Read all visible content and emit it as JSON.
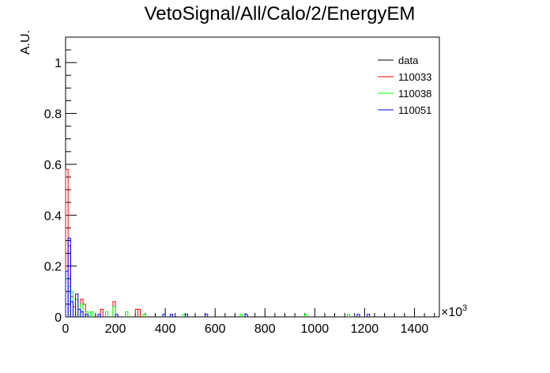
{
  "chart_data": {
    "type": "histogram",
    "title": "VetoSignal/All/Calo/2/EnergyEM",
    "xlabel": "",
    "ylabel": "A.U.",
    "x_multiplier": "×10",
    "x_multiplier_exp": "3",
    "xlim": [
      0,
      1500
    ],
    "ylim": [
      0,
      1.1
    ],
    "bin_width": 10,
    "x_ticks": [
      0,
      200,
      400,
      600,
      800,
      1000,
      1200,
      1400
    ],
    "x_tick_labels": [
      "0",
      "200",
      "400",
      "600",
      "800",
      "1000",
      "1200",
      "1400"
    ],
    "y_ticks": [
      0,
      0.2,
      0.4,
      0.6,
      0.8,
      1
    ],
    "y_tick_labels": [
      "0",
      "0.2",
      "0.4",
      "0.6",
      "0.8",
      "1"
    ],
    "legend_position": "top-right",
    "series": [
      {
        "name": "data",
        "color": "#000000",
        "bins": []
      },
      {
        "name": "110033",
        "color": "#ff0000",
        "bins": [
          [
            0,
            0.58
          ],
          [
            10,
            0.28
          ],
          [
            20,
            0.08
          ],
          [
            30,
            0.04
          ],
          [
            60,
            0.07
          ],
          [
            70,
            0.05
          ],
          [
            140,
            0.03
          ],
          [
            190,
            0.06
          ],
          [
            280,
            0.03
          ],
          [
            290,
            0.03
          ]
        ]
      },
      {
        "name": "110038",
        "color": "#00ff00",
        "bins": [
          [
            0,
            0.15
          ],
          [
            10,
            0.12
          ],
          [
            20,
            0.1
          ],
          [
            40,
            0.07
          ],
          [
            60,
            0.05
          ],
          [
            80,
            0.02
          ],
          [
            100,
            0.02
          ],
          [
            160,
            0.02
          ],
          [
            190,
            0.04
          ],
          [
            240,
            0.02
          ],
          [
            310,
            0.01
          ],
          [
            390,
            0.01
          ],
          [
            470,
            0.01
          ],
          [
            700,
            0.01
          ],
          [
            960,
            0.01
          ],
          [
            1130,
            0.01
          ]
        ]
      },
      {
        "name": "110051",
        "color": "#0000ff",
        "bins": [
          [
            0,
            0.18
          ],
          [
            10,
            0.31
          ],
          [
            20,
            0.06
          ],
          [
            40,
            0.09
          ],
          [
            50,
            0.03
          ],
          [
            60,
            0.02
          ],
          [
            80,
            0.01
          ],
          [
            130,
            0.01
          ],
          [
            200,
            0.01
          ],
          [
            390,
            0.01
          ],
          [
            420,
            0.01
          ],
          [
            480,
            0.01
          ],
          [
            560,
            0.01
          ],
          [
            720,
            0.01
          ],
          [
            1170,
            0.01
          ],
          [
            1210,
            0.01
          ]
        ]
      }
    ]
  }
}
